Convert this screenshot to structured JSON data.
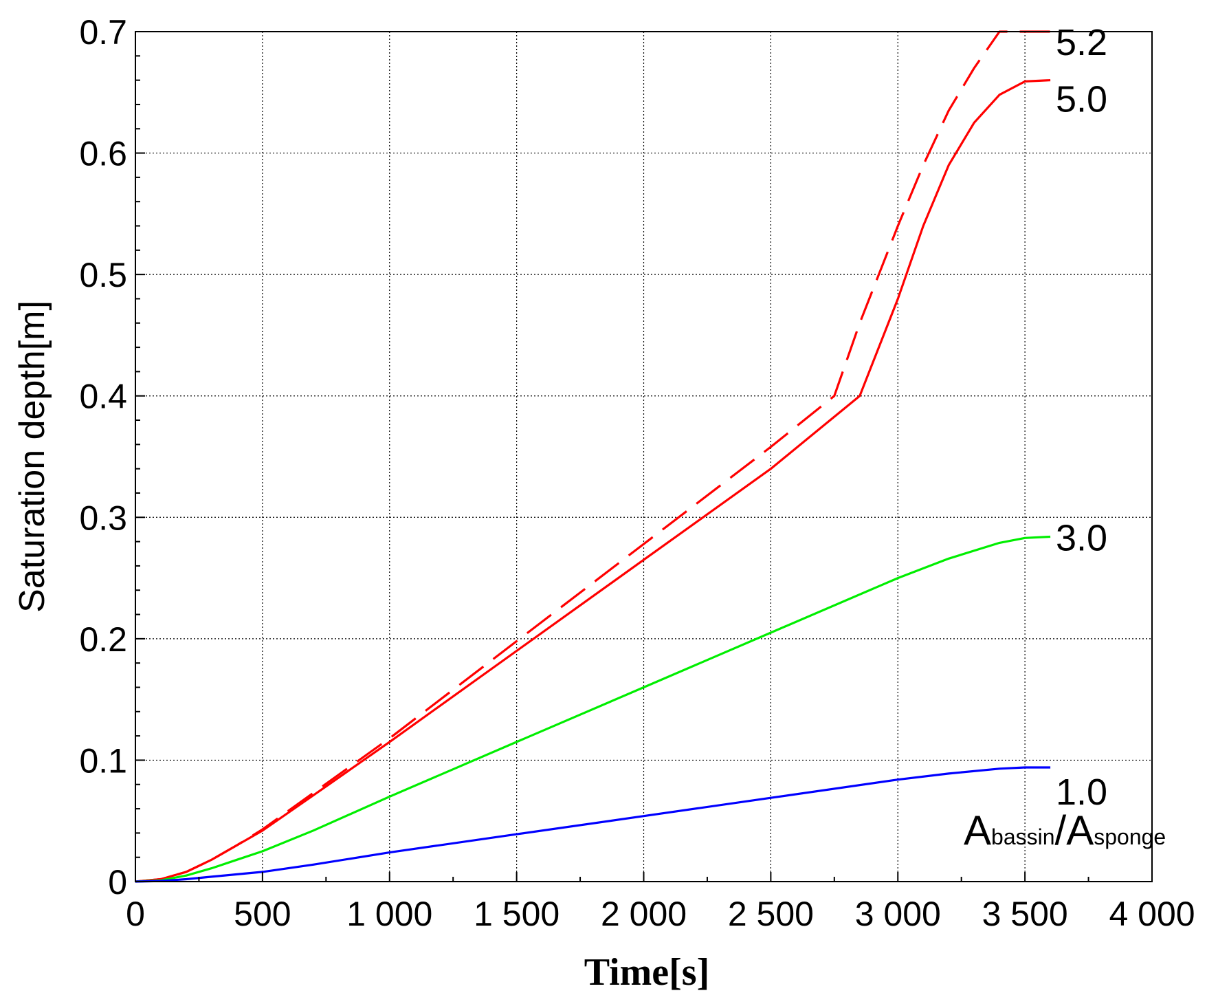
{
  "chart_data": {
    "type": "line",
    "xlabel": "Time[s]",
    "ylabel": "Saturation depth[m]",
    "xlim": [
      0,
      4000
    ],
    "ylim": [
      0,
      0.7
    ],
    "x_ticks": [
      0,
      500,
      1000,
      1500,
      2000,
      2500,
      3000,
      3500,
      4000
    ],
    "x_tick_labels": [
      "0",
      "500",
      "1 000",
      "1 500",
      "2 000",
      "2 500",
      "3 000",
      "3 500",
      "4 000"
    ],
    "y_ticks": [
      0,
      0.1,
      0.2,
      0.3,
      0.4,
      0.5,
      0.6,
      0.7
    ],
    "y_tick_labels": [
      "0",
      "0.1",
      "0.2",
      "0.3",
      "0.4",
      "0.5",
      "0.6",
      "0.7"
    ],
    "grid": true,
    "annotation": {
      "main": "A",
      "sub": "bassin",
      "slash": "/A",
      "sub2": "sponge"
    },
    "series": [
      {
        "name": "5.2",
        "color": "#ff0000",
        "dash": true,
        "x": [
          0,
          100,
          200,
          300,
          400,
          500,
          700,
          1000,
          1500,
          2000,
          2500,
          2750,
          2850,
          3000,
          3100,
          3200,
          3300,
          3400,
          3600
        ],
        "y": [
          0,
          0.002,
          0.008,
          0.018,
          0.03,
          0.043,
          0.073,
          0.118,
          0.198,
          0.278,
          0.358,
          0.4,
          0.46,
          0.54,
          0.59,
          0.635,
          0.67,
          0.7,
          0.7
        ]
      },
      {
        "name": "5.0",
        "color": "#ff0000",
        "dash": false,
        "x": [
          0,
          100,
          200,
          300,
          400,
          500,
          700,
          1000,
          1500,
          2000,
          2500,
          2850,
          3000,
          3100,
          3200,
          3300,
          3400,
          3500,
          3600
        ],
        "y": [
          0,
          0.002,
          0.008,
          0.018,
          0.03,
          0.042,
          0.071,
          0.115,
          0.19,
          0.265,
          0.34,
          0.4,
          0.48,
          0.54,
          0.59,
          0.625,
          0.648,
          0.659,
          0.66
        ]
      },
      {
        "name": "3.0",
        "color": "#00ee00",
        "dash": false,
        "x": [
          0,
          100,
          200,
          300,
          400,
          500,
          700,
          1000,
          1500,
          2000,
          2500,
          3000,
          3200,
          3400,
          3500,
          3600
        ],
        "y": [
          0,
          0.001,
          0.005,
          0.011,
          0.018,
          0.025,
          0.042,
          0.07,
          0.115,
          0.16,
          0.205,
          0.25,
          0.266,
          0.279,
          0.283,
          0.284
        ]
      },
      {
        "name": "1.0",
        "color": "#0000ff",
        "dash": false,
        "x": [
          0,
          100,
          200,
          300,
          400,
          500,
          700,
          1000,
          1500,
          2000,
          2500,
          3000,
          3200,
          3400,
          3500,
          3600
        ],
        "y": [
          0,
          0.0005,
          0.002,
          0.004,
          0.006,
          0.008,
          0.014,
          0.024,
          0.039,
          0.054,
          0.069,
          0.084,
          0.089,
          0.093,
          0.094,
          0.094
        ]
      }
    ]
  }
}
